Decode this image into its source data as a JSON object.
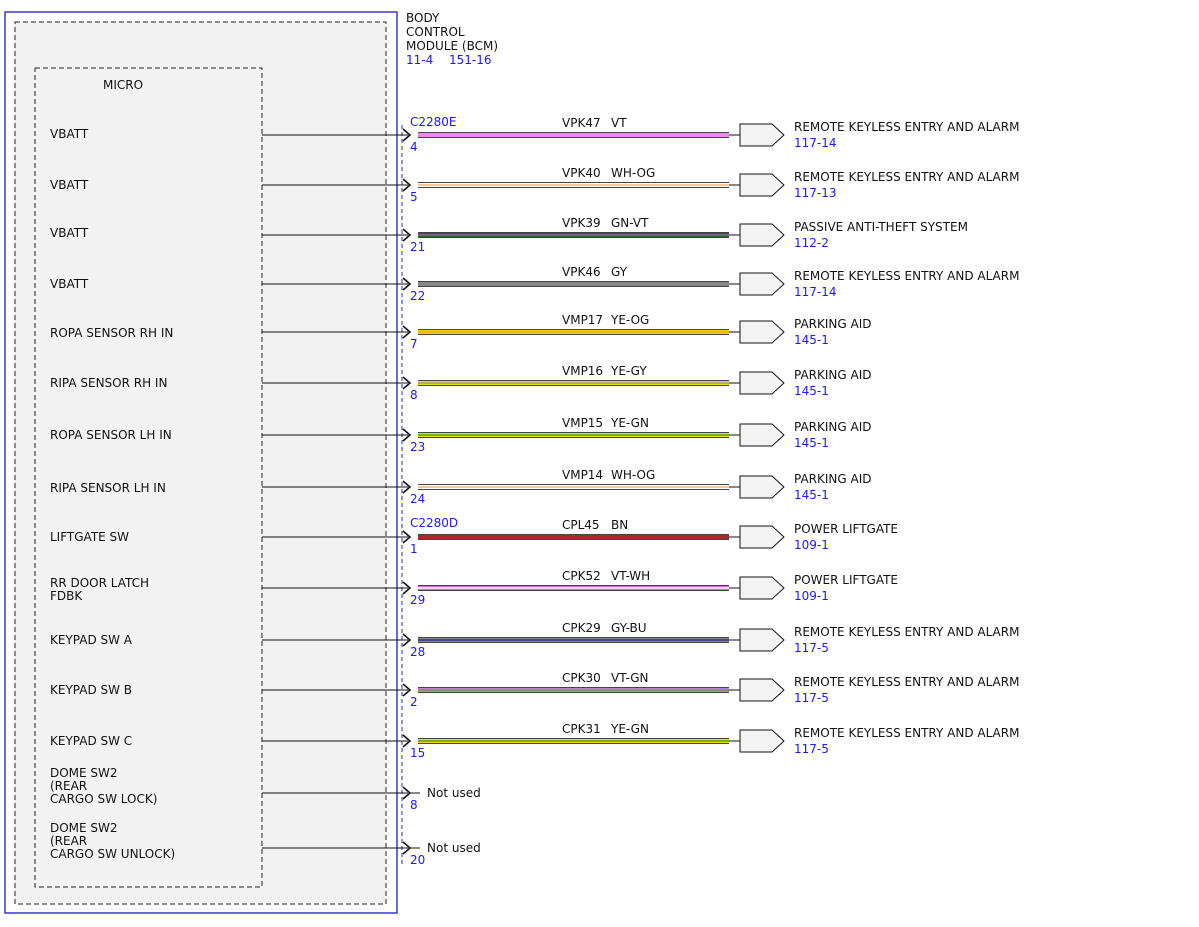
{
  "module": {
    "title_lines": [
      "BODY",
      "CONTROL",
      "MODULE (BCM)"
    ],
    "refs": [
      "11-4",
      "151-16"
    ],
    "micro_label": "MICRO"
  },
  "connector_labels": [
    {
      "text": "C2280E",
      "before_pin": 0
    },
    {
      "text": "C2280D",
      "before_pin": 8
    }
  ],
  "pins": [
    {
      "label": [
        "VBATT"
      ],
      "pin": "4",
      "circuit": "VPK47",
      "color_code": "VT",
      "colors": [
        "#ee88ee",
        "#ee88ee"
      ],
      "dest": "REMOTE KEYLESS ENTRY AND ALARM",
      "dest_ref": "117-14"
    },
    {
      "label": [
        "VBATT"
      ],
      "pin": "5",
      "circuit": "VPK40",
      "color_code": "WH-OG",
      "colors": [
        "#ffffff",
        "#f0b060"
      ],
      "dest": "REMOTE KEYLESS ENTRY AND ALARM",
      "dest_ref": "117-13"
    },
    {
      "label": [
        "VBATT"
      ],
      "pin": "21",
      "circuit": "VPK39",
      "color_code": "GN-VT",
      "colors": [
        "#1e6b1e",
        "#9a5fb0"
      ],
      "dest": "PASSIVE ANTI-THEFT SYSTEM",
      "dest_ref": "112-2"
    },
    {
      "label": [
        "VBATT"
      ],
      "pin": "22",
      "circuit": "VPK46",
      "color_code": "GY",
      "colors": [
        "#888888",
        "#888888"
      ],
      "dest": "REMOTE KEYLESS ENTRY AND ALARM",
      "dest_ref": "117-14"
    },
    {
      "label": [
        "ROPA SENSOR RH IN"
      ],
      "pin": "7",
      "circuit": "VMP17",
      "color_code": "YE-OG",
      "colors": [
        "#f2dc00",
        "#f0a030"
      ],
      "dest": "PARKING AID",
      "dest_ref": "145-1"
    },
    {
      "label": [
        "RIPA SENSOR RH IN"
      ],
      "pin": "8",
      "circuit": "VMP16",
      "color_code": "YE-GY",
      "colors": [
        "#e8e000",
        "#999999"
      ],
      "dest": "PARKING AID",
      "dest_ref": "145-1"
    },
    {
      "label": [
        "ROPA SENSOR LH IN"
      ],
      "pin": "23",
      "circuit": "VMP15",
      "color_code": "YE-GN",
      "colors": [
        "#e8e000",
        "#4a9a2a"
      ],
      "dest": "PARKING AID",
      "dest_ref": "145-1"
    },
    {
      "label": [
        "RIPA SENSOR LH IN"
      ],
      "pin": "24",
      "circuit": "VMP14",
      "color_code": "WH-OG",
      "colors": [
        "#ffffff",
        "#f0b060"
      ],
      "dest": "PARKING AID",
      "dest_ref": "145-1"
    },
    {
      "label": [
        "LIFTGATE SW"
      ],
      "pin": "1",
      "circuit": "CPL45",
      "color_code": "BN",
      "colors": [
        "#a52a2a",
        "#a52a2a"
      ],
      "dest": "POWER LIFTGATE",
      "dest_ref": "109-1"
    },
    {
      "label": [
        "RR DOOR LATCH",
        "FDBK"
      ],
      "pin": "29",
      "circuit": "CPK52",
      "color_code": "VT-WH",
      "colors": [
        "#d070d0",
        "#ffffff"
      ],
      "dest": "POWER LIFTGATE",
      "dest_ref": "109-1"
    },
    {
      "label": [
        "KEYPAD SW A"
      ],
      "pin": "28",
      "circuit": "CPK29",
      "color_code": "GY-BU",
      "colors": [
        "#888888",
        "#2a2aa0"
      ],
      "dest": "REMOTE KEYLESS ENTRY AND ALARM",
      "dest_ref": "117-5"
    },
    {
      "label": [
        "KEYPAD SW B"
      ],
      "pin": "2",
      "circuit": "CPK30",
      "color_code": "VT-GN",
      "colors": [
        "#c080d0",
        "#6aa04a"
      ],
      "dest": "REMOTE KEYLESS ENTRY AND ALARM",
      "dest_ref": "117-5"
    },
    {
      "label": [
        "KEYPAD SW C"
      ],
      "pin": "15",
      "circuit": "CPK31",
      "color_code": "YE-GN",
      "colors": [
        "#e8e000",
        "#4a9a2a"
      ],
      "dest": "REMOTE KEYLESS ENTRY AND ALARM",
      "dest_ref": "117-5"
    },
    {
      "label": [
        "DOME SW2",
        "(REAR",
        "CARGO SW LOCK)"
      ],
      "pin": "8",
      "unused": "Not used"
    },
    {
      "label": [
        "DOME SW2",
        "(REAR",
        "CARGO SW UNLOCK)"
      ],
      "pin": "20",
      "unused": "Not used"
    }
  ]
}
